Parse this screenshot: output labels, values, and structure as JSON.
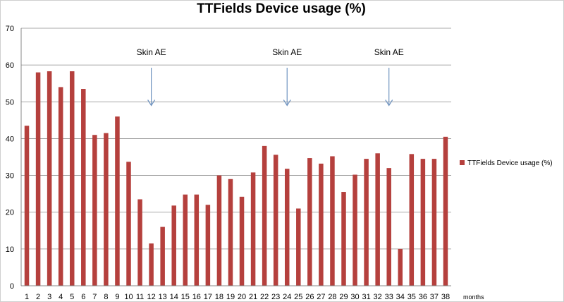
{
  "chart_data": {
    "type": "bar",
    "title": "TTFields Device usage (%)",
    "xlabel": "months",
    "ylabel": "",
    "ylim": [
      0,
      70
    ],
    "yticks": [
      0,
      10,
      20,
      30,
      40,
      50,
      60,
      70
    ],
    "grid": true,
    "legend_position": "right",
    "categories": [
      "1",
      "2",
      "3",
      "4",
      "5",
      "6",
      "7",
      "8",
      "9",
      "10",
      "11",
      "12",
      "13",
      "14",
      "15",
      "16",
      "17",
      "18",
      "19",
      "20",
      "21",
      "22",
      "23",
      "24",
      "25",
      "26",
      "27",
      "28",
      "29",
      "30",
      "31",
      "32",
      "33",
      "34",
      "35",
      "36",
      "37",
      "38"
    ],
    "series": [
      {
        "name": "TTFields Device usage (%)",
        "color": "#b5403d",
        "values": [
          43.5,
          58,
          58.3,
          54,
          58.3,
          53.5,
          41,
          41.5,
          46,
          33.7,
          23.5,
          11.5,
          16,
          21.8,
          24.8,
          24.8,
          22,
          30,
          29,
          24.2,
          30.8,
          38,
          35.6,
          31.8,
          21,
          34.7,
          33.2,
          35.2,
          25.5,
          30.2,
          34.5,
          36,
          32,
          10,
          35.8,
          34.5,
          34.5,
          40.5
        ]
      }
    ],
    "annotations": [
      {
        "text": "Skin AE",
        "x": "12",
        "arrow_to_y": 49
      },
      {
        "text": "Skin AE",
        "x": "24",
        "arrow_to_y": 49
      },
      {
        "text": "Skin AE",
        "x": "33",
        "arrow_to_y": 49
      }
    ]
  }
}
